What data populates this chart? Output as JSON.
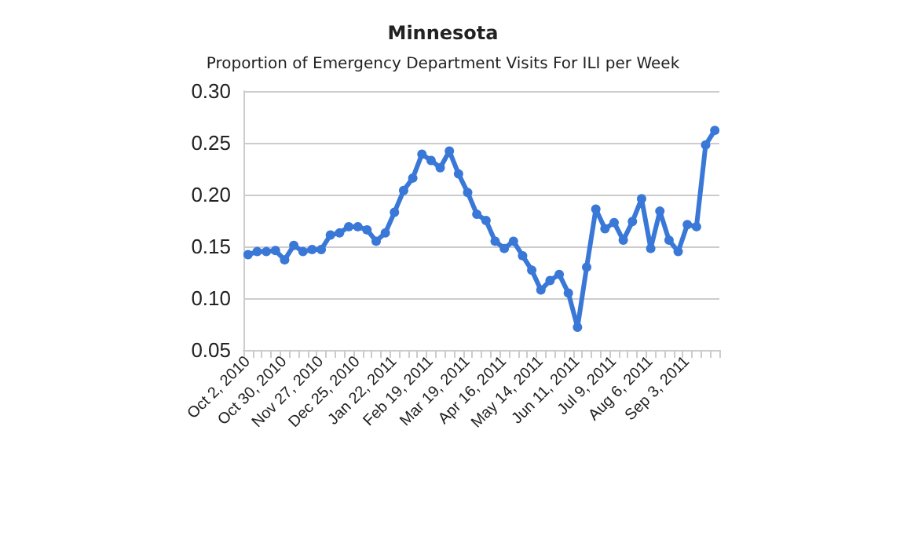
{
  "chart_data": {
    "type": "line",
    "title": "Minnesota",
    "subtitle": "Proportion of Emergency Department Visits For ILI per Week",
    "categories": [
      "Oct 2, 2010",
      null,
      null,
      null,
      "Oct 30, 2010",
      null,
      null,
      null,
      "Nov 27, 2010",
      null,
      null,
      null,
      "Dec 25, 2010",
      null,
      null,
      null,
      "Jan 22, 2011",
      null,
      null,
      null,
      "Feb 19, 2011",
      null,
      null,
      null,
      "Mar 19, 2011",
      null,
      null,
      null,
      "Apr 16, 2011",
      null,
      null,
      null,
      "May 14, 2011",
      null,
      null,
      null,
      "Jun 11, 2011",
      null,
      null,
      null,
      "Jul 9, 2011",
      null,
      null,
      null,
      "Aug 6, 2011",
      null,
      null,
      null,
      "Sep 3, 2011",
      null,
      null,
      null
    ],
    "series": [
      {
        "color": "#3a78d8",
        "values": [
          0.142,
          0.145,
          0.145,
          0.146,
          0.137,
          0.151,
          0.145,
          0.147,
          0.147,
          0.161,
          0.163,
          0.169,
          0.169,
          0.166,
          0.155,
          0.163,
          0.183,
          0.204,
          0.216,
          0.239,
          0.233,
          0.226,
          0.242,
          0.22,
          0.202,
          0.181,
          0.175,
          0.155,
          0.148,
          0.155,
          0.141,
          0.127,
          0.108,
          0.117,
          0.123,
          0.105,
          0.072,
          0.13,
          0.186,
          0.167,
          0.173,
          0.156,
          0.174,
          0.196,
          0.148,
          0.184,
          0.156,
          0.145,
          0.171,
          0.169,
          0.248,
          0.262
        ]
      }
    ],
    "ylim": [
      0.05,
      0.3
    ],
    "yticks": [
      {
        "value": 0.05,
        "label": "0.05"
      },
      {
        "value": 0.1,
        "label": "0.10"
      },
      {
        "value": 0.15,
        "label": "0.15"
      },
      {
        "value": 0.2,
        "label": "0.20"
      },
      {
        "value": 0.25,
        "label": "0.25"
      },
      {
        "value": 0.3,
        "label": "0.30"
      }
    ],
    "grid": "y",
    "marker": "circle",
    "line_style": "solid"
  }
}
